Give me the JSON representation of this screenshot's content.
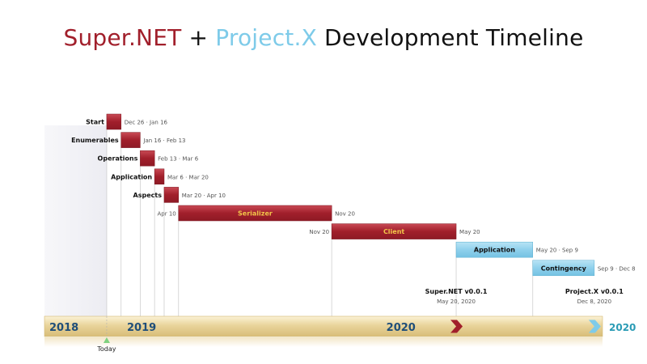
{
  "title": {
    "part1": "Super.NET",
    "part2": " + ",
    "part3": "Project.X",
    "part4": " Development Timeline"
  },
  "colors": {
    "supernet": "#a11f2b",
    "projectx": "#7ecbe9",
    "axis_band": "#e8d49a",
    "year_past": "#1f4e79",
    "year_future": "#2a9bb5",
    "today_marker": "#7fd17f"
  },
  "chart_data": {
    "type": "gantt",
    "tasks": [
      {
        "name": "Start",
        "start": "2018-12-26",
        "end": "2019-01-16",
        "start_label": "Dec 26",
        "end_label": "Jan 16",
        "group": "supernet",
        "label_position": "left"
      },
      {
        "name": "Enumerables",
        "start": "2019-01-16",
        "end": "2019-02-13",
        "start_label": "Jan 16",
        "end_label": "Feb 13",
        "group": "supernet",
        "label_position": "left"
      },
      {
        "name": "Operations",
        "start": "2019-02-13",
        "end": "2019-03-06",
        "start_label": "Feb 13",
        "end_label": "Mar 6",
        "group": "supernet",
        "label_position": "left"
      },
      {
        "name": "Application",
        "start": "2019-03-06",
        "end": "2019-03-20",
        "start_label": "Mar 6",
        "end_label": "Mar 20",
        "group": "supernet",
        "label_position": "left"
      },
      {
        "name": "Aspects",
        "start": "2019-03-20",
        "end": "2019-04-10",
        "start_label": "Mar 20",
        "end_label": "Apr 10",
        "group": "supernet",
        "label_position": "left"
      },
      {
        "name": "Serializer",
        "start": "2019-04-10",
        "end": "2019-11-20",
        "start_label": "Apr 10",
        "end_label": "Nov 20",
        "group": "supernet",
        "label_position": "inside"
      },
      {
        "name": "Client",
        "start": "2019-11-20",
        "end": "2020-05-20",
        "start_label": "Nov 20",
        "end_label": "May 20",
        "group": "supernet",
        "label_position": "inside"
      },
      {
        "name": "Application",
        "start": "2020-05-20",
        "end": "2020-09-09",
        "start_label": "May 20",
        "end_label": "Sep 9",
        "group": "projectx",
        "label_position": "inside"
      },
      {
        "name": "Contingency",
        "start": "2020-09-09",
        "end": "2020-12-08",
        "start_label": "Sep 9",
        "end_label": "Dec 8",
        "group": "projectx",
        "label_position": "inside"
      }
    ],
    "milestones": [
      {
        "name": "Super.NET v0.0.1",
        "date": "2020-05-20",
        "date_label": "May 20, 2020",
        "group": "supernet"
      },
      {
        "name": "Project.X v0.0.1",
        "date": "2020-12-08",
        "date_label": "Dec 8,  2020",
        "group": "projectx"
      }
    ],
    "axis": {
      "start": "2018-09-26",
      "end": "2020-12-20",
      "years": [
        {
          "label": "2018",
          "date": "2018-09-26",
          "style": "past"
        },
        {
          "label": "2019",
          "date": "2019-01-01",
          "style": "past"
        },
        {
          "label": "2020",
          "date": "2020-01-01",
          "style": "past"
        },
        {
          "label": "2020",
          "date": "2020-12-31",
          "style": "future"
        }
      ]
    },
    "today": {
      "label": "Today",
      "date": "2018-12-26"
    }
  }
}
